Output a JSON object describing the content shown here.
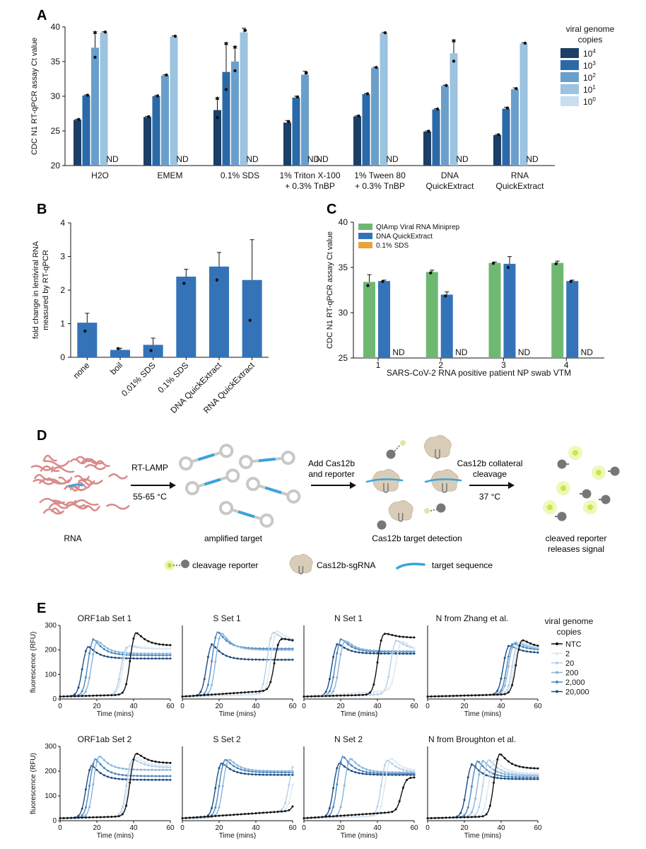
{
  "colors": {
    "c10_4": "#1b3f66",
    "c10_3": "#2b6aa8",
    "c10_2": "#6a9fcb",
    "c10_1": "#9cc3e0",
    "c10_0": "#c9def0",
    "blue": "#3473b8",
    "green": "#6fb872",
    "orange": "#e9a33b",
    "worm": "#d98a8a",
    "glow": "#d8f06c",
    "grey": "#777777",
    "loop": "#c8c8c8",
    "target": "#3aa3de",
    "cas": "#d9cdb8"
  },
  "panels": {
    "A": {
      "letter": "A",
      "chart_data": {
        "type": "bar",
        "ylabel": "CDC N1 RT-qPCR assay Ct value",
        "ylim": [
          20,
          40
        ],
        "yticks": [
          "20",
          "25",
          "30",
          "35",
          "40"
        ],
        "groups": [
          {
            "label1": "H2O",
            "label2": "",
            "values": [
              26.6,
              30.1,
              37.0,
              39.2,
              null
            ],
            "err": [
              0.1,
              0.1,
              2.3,
              0.1,
              null
            ]
          },
          {
            "label1": "EMEM",
            "label2": "",
            "values": [
              27.0,
              30.0,
              33.0,
              38.6,
              null
            ],
            "err": [
              0.1,
              0.1,
              0.1,
              0.1,
              null
            ]
          },
          {
            "label1": "0.1% SDS",
            "label2": "",
            "values": [
              28.0,
              33.5,
              35.0,
              39.2,
              null
            ],
            "err": [
              1.8,
              4.2,
              2.2,
              0.6,
              null
            ]
          },
          {
            "label1": "1% Triton X-100",
            "label2": "+ 0.3% TnBP",
            "values": [
              26.2,
              29.8,
              33.1,
              null,
              null
            ],
            "err": [
              0.3,
              0.2,
              0.5,
              null,
              null
            ]
          },
          {
            "label1": "1% Tween 80",
            "label2": "+ 0.3% TnBP",
            "values": [
              27.1,
              30.3,
              34.1,
              39.1,
              null
            ],
            "err": [
              0.1,
              0.1,
              0.1,
              0.1,
              null
            ]
          },
          {
            "label1": "DNA",
            "label2": "QuickExtract",
            "values": [
              24.9,
              28.1,
              31.5,
              36.2,
              null
            ],
            "err": [
              0.1,
              0.1,
              0.1,
              1.9,
              null
            ]
          },
          {
            "label1": "RNA",
            "label2": "QuickExtract",
            "values": [
              24.4,
              28.2,
              31.0,
              37.6,
              null
            ],
            "err": [
              0.1,
              0.2,
              0.2,
              0.1,
              null
            ]
          }
        ],
        "nd_label": "ND",
        "legend": {
          "title": [
            "viral genome",
            "copies"
          ],
          "entries": [
            {
              "base": "10",
              "exp": "4"
            },
            {
              "base": "10",
              "exp": "3"
            },
            {
              "base": "10",
              "exp": "2"
            },
            {
              "base": "10",
              "exp": "1"
            },
            {
              "base": "10",
              "exp": "0"
            }
          ]
        }
      }
    },
    "B": {
      "letter": "B",
      "chart_data": {
        "type": "bar",
        "ylabel": [
          "fold change in lentiviral RNA",
          "measured by RT-qPCR"
        ],
        "ylim": [
          0,
          4
        ],
        "yticks": [
          "0",
          "1",
          "2",
          "3",
          "4"
        ],
        "categories": [
          "none",
          "boil",
          "0.01% SDS",
          "0.1% SDS",
          "DNA QuickExtract",
          "RNA QuickExtract"
        ],
        "values": [
          1.03,
          0.22,
          0.37,
          2.4,
          2.7,
          2.3
        ],
        "err": [
          0.28,
          0.05,
          0.2,
          0.22,
          0.42,
          1.2
        ],
        "points": [
          0.78,
          0.26,
          0.2,
          2.2,
          2.3,
          1.1
        ]
      }
    },
    "C": {
      "letter": "C",
      "chart_data": {
        "type": "bar",
        "ylabel": "CDC N1 RT-qPCR assay Ct value",
        "xlabel": "SARS-CoV-2 RNA positive patient NP swab VTM",
        "ylim": [
          25,
          40
        ],
        "yticks": [
          "25",
          "30",
          "35",
          "40"
        ],
        "categories": [
          "1",
          "2",
          "3",
          "4"
        ],
        "series": [
          {
            "name": "QIAmp Viral RNA Miniprep",
            "values": [
              33.4,
              34.5,
              35.5,
              35.5
            ],
            "err": [
              0.8,
              0.2,
              0.1,
              0.2
            ]
          },
          {
            "name": "DNA QuickExtract",
            "values": [
              33.5,
              32.0,
              35.4,
              33.5
            ],
            "err": [
              0.1,
              0.3,
              0.8,
              0.1
            ]
          },
          {
            "name": "0.1% SDS",
            "values": [
              null,
              null,
              null,
              null
            ],
            "err": [
              null,
              null,
              null,
              null
            ]
          }
        ],
        "nd_label": "ND"
      }
    },
    "D": {
      "letter": "D",
      "rna": "RNA",
      "rt_lamp": "RT-LAMP",
      "temp1": "55-65 °C",
      "amplified": "amplified target",
      "add1": "Add Cas12b",
      "add2": "and reporter",
      "detection": "Cas12b target detection",
      "coll1": "Cas12b collateral",
      "coll2": "cleavage",
      "temp2": "37 °C",
      "cleaved1": "cleaved reporter",
      "cleaved2": "releases signal",
      "legend_reporter": "cleavage reporter",
      "legend_cas": "Cas12b-sgRNA",
      "legend_target": "target sequence"
    },
    "E": {
      "letter": "E",
      "ylabel": "fluorescence (RFU)",
      "xlabel": "Time (mins)",
      "xticks": [
        "0",
        "20",
        "40",
        "60"
      ],
      "yticks": [
        "0",
        "100",
        "200",
        "300"
      ],
      "legend": {
        "title": [
          "viral genome",
          "copies"
        ],
        "entries": [
          "NTC",
          "2",
          "20",
          "200",
          "2,000",
          "20,000"
        ],
        "colors": [
          "#111111",
          "#dbe7f3",
          "#b5cfe7",
          "#88b3d8",
          "#4a86bf",
          "#1f4c7f"
        ]
      },
      "chart_data": {
        "type": "line",
        "x_range": [
          0,
          60
        ],
        "y_range": [
          0,
          300
        ],
        "curve_model": "sigmoid rise to peak then decay to plateau",
        "panels": [
          {
            "title": "ORF1ab Set 1",
            "series": [
              {
                "name": "NTC",
                "onset": 35,
                "peak": 290,
                "plateau": 218
              },
              {
                "name": "2",
                "onset": 31,
                "peak": 230,
                "plateau": 205
              },
              {
                "name": "20",
                "onset": 30,
                "peak": 225,
                "plateau": 205
              },
              {
                "name": "200",
                "onset": 14,
                "peak": 255,
                "plateau": 185
              },
              {
                "name": "2,000",
                "onset": 12,
                "peak": 262,
                "plateau": 178
              },
              {
                "name": "20,000",
                "onset": 9,
                "peak": 230,
                "plateau": 165
              }
            ]
          },
          {
            "title": "S Set 1",
            "series": [
              {
                "name": "NTC",
                "onset": 47,
                "peak": 255,
                "plateau": 235
              },
              {
                "name": "2",
                "onset": 45,
                "peak": 295,
                "plateau": 235
              },
              {
                "name": "20",
                "onset": 43,
                "peak": 290,
                "plateau": 230
              },
              {
                "name": "200",
                "onset": 15,
                "peak": 290,
                "plateau": 200
              },
              {
                "name": "2,000",
                "onset": 13,
                "peak": 295,
                "plateau": 205
              },
              {
                "name": "20,000",
                "onset": 10,
                "peak": 240,
                "plateau": 160
              }
            ]
          },
          {
            "title": "N Set 1",
            "series": [
              {
                "name": "NTC",
                "onset": 37,
                "peak": 280,
                "plateau": 250
              },
              {
                "name": "2",
                "onset": 47,
                "peak": 250,
                "plateau": 195
              },
              {
                "name": "20",
                "onset": 44,
                "peak": 255,
                "plateau": 200
              },
              {
                "name": "200",
                "onset": 16,
                "peak": 255,
                "plateau": 195
              },
              {
                "name": "2,000",
                "onset": 14,
                "peak": 262,
                "plateau": 192
              },
              {
                "name": "20,000",
                "onset": 12,
                "peak": 240,
                "plateau": 185
              }
            ]
          },
          {
            "title": "N from Zhang et al.",
            "series": [
              {
                "name": "NTC",
                "onset": 45,
                "peak": 255,
                "plateau": 210
              },
              {
                "name": "2",
                "onset": 44,
                "peak": 245,
                "plateau": 210
              },
              {
                "name": "20",
                "onset": 43,
                "peak": 245,
                "plateau": 205
              },
              {
                "name": "200",
                "onset": 41,
                "peak": 245,
                "plateau": 205
              },
              {
                "name": "2,000",
                "onset": 40,
                "peak": 240,
                "plateau": 200
              },
              {
                "name": "20,000",
                "onset": 38,
                "peak": 232,
                "plateau": 188
              }
            ]
          },
          {
            "title": "ORF1ab Set 2",
            "series": [
              {
                "name": "NTC",
                "onset": 35,
                "peak": 290,
                "plateau": 232
              },
              {
                "name": "2",
                "onset": 34,
                "peak": 275,
                "plateau": 220
              },
              {
                "name": "20",
                "onset": 33,
                "peak": 265,
                "plateau": 215
              },
              {
                "name": "200",
                "onset": 15,
                "peak": 280,
                "plateau": 205
              },
              {
                "name": "2,000",
                "onset": 13,
                "peak": 270,
                "plateau": 180
              },
              {
                "name": "20,000",
                "onset": 11,
                "peak": 240,
                "plateau": 165
              }
            ]
          },
          {
            "title": "S Set 2",
            "series": [
              {
                "name": "NTC",
                "onset": 60,
                "peak": 270,
                "plateau": 270
              },
              {
                "name": "2",
                "onset": 57,
                "peak": 250,
                "plateau": 240
              },
              {
                "name": "20",
                "onset": 55,
                "peak": 250,
                "plateau": 235
              },
              {
                "name": "200",
                "onset": 19,
                "peak": 265,
                "plateau": 200
              },
              {
                "name": "2,000",
                "onset": 17,
                "peak": 265,
                "plateau": 195
              },
              {
                "name": "20,000",
                "onset": 15,
                "peak": 250,
                "plateau": 185
              }
            ]
          },
          {
            "title": "N Set 2",
            "series": [
              {
                "name": "NTC",
                "onset": 50,
                "peak": 175,
                "plateau": 175
              },
              {
                "name": "2",
                "onset": 41,
                "peak": 270,
                "plateau": 200
              },
              {
                "name": "20",
                "onset": 39,
                "peak": 262,
                "plateau": 195
              },
              {
                "name": "200",
                "onset": 19,
                "peak": 270,
                "plateau": 195
              },
              {
                "name": "2,000",
                "onset": 15,
                "peak": 280,
                "plateau": 190
              },
              {
                "name": "20,000",
                "onset": 13,
                "peak": 250,
                "plateau": 185
              }
            ]
          },
          {
            "title": "N from Broughton et al.",
            "series": [
              {
                "name": "NTC",
                "onset": 33,
                "peak": 290,
                "plateau": 210
              },
              {
                "name": "2",
                "onset": 30,
                "peak": 260,
                "plateau": 190
              },
              {
                "name": "20",
                "onset": 27,
                "peak": 265,
                "plateau": 185
              },
              {
                "name": "200",
                "onset": 24,
                "peak": 260,
                "plateau": 182
              },
              {
                "name": "2,000",
                "onset": 21,
                "peak": 260,
                "plateau": 175
              },
              {
                "name": "20,000",
                "onset": 18,
                "peak": 245,
                "plateau": 168
              }
            ]
          }
        ]
      }
    }
  }
}
